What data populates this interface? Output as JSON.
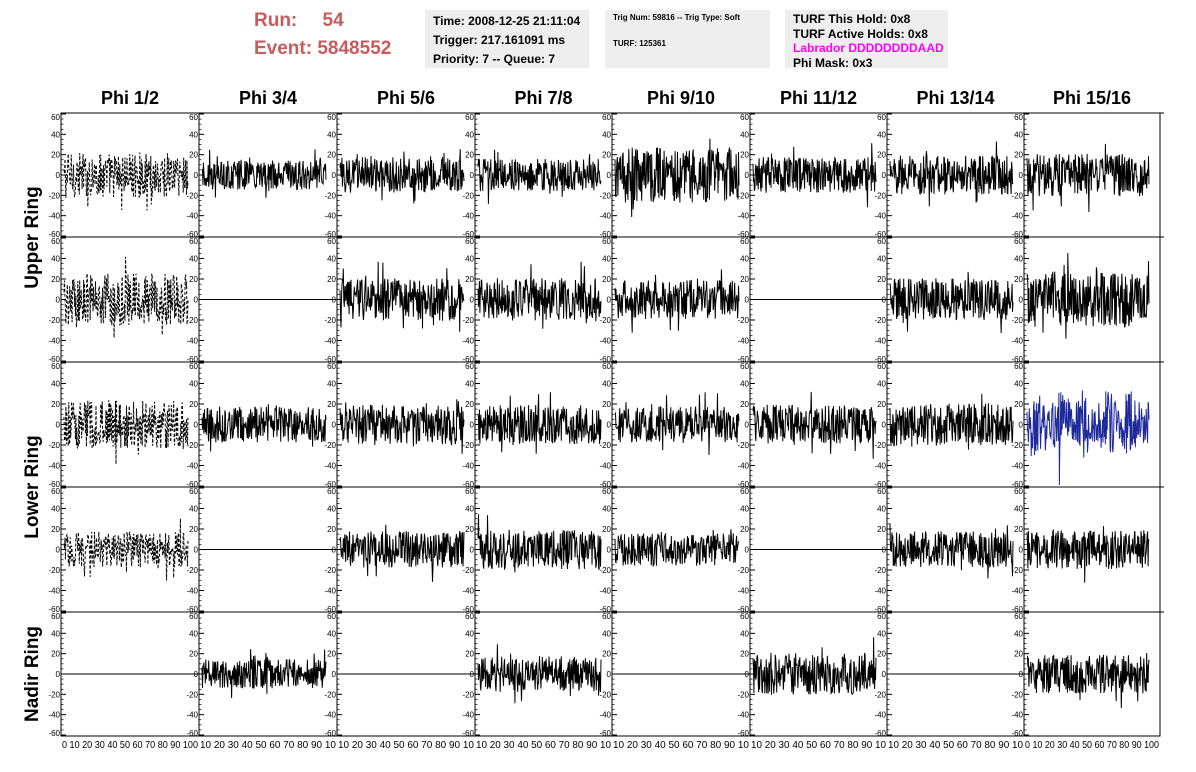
{
  "header": {
    "run_label": "Run:",
    "run_value": "54",
    "event_label": "Event:",
    "event_value": "5848552",
    "time": "Time: 2008-12-25 21:11:04",
    "trigger": "Trigger: 217.161091 ms",
    "priority": "Priority: 7 -- Queue: 7",
    "trig_num": "Trig Num: 59816 -- Trig Type: Soft",
    "turf": "TURF: 125361",
    "turf_this_hold": "TURF This Hold: 0x8",
    "turf_active_holds": "TURF Active Holds: 0x8",
    "labrador": "Labrador DDDDDDDDAAD",
    "phi_mask": "Phi Mask: 0x3"
  },
  "colors": {
    "run_text": "#c85b5b",
    "labrador_text": "#ff00ff",
    "highlight_trace": "#1f2a9a",
    "trace": "#000000",
    "info_box_bg": "#eeeeee"
  },
  "chart_data": {
    "type": "line",
    "columns": [
      "Phi 1/2",
      "Phi 3/4",
      "Phi 5/6",
      "Phi 7/8",
      "Phi 9/10",
      "Phi 11/12",
      "Phi 13/14",
      "Phi 15/16"
    ],
    "rows": [
      "Upper Ring",
      "Lower Ring",
      "Nadir Ring"
    ],
    "panel_rows": 5,
    "ylim": [
      -60,
      60
    ],
    "yticks": [
      -60,
      -40,
      -20,
      0,
      20,
      40,
      60
    ],
    "xlim": [
      0,
      100
    ],
    "xticks": [
      0,
      10,
      20,
      30,
      40,
      50,
      60,
      70,
      80,
      90,
      100
    ],
    "xtick_labels_edge": "0 10 20 30 40 50 60 70 80 90 100",
    "xtick_labels_inner": "10 20 30 40 50 60 70 80 90 10",
    "panels": [
      [
        {
          "style": "dashed",
          "amp": 14
        },
        {
          "style": "solid",
          "amp": 9
        },
        {
          "style": "solid",
          "amp": 11
        },
        {
          "style": "solid",
          "amp": 10
        },
        {
          "style": "solid",
          "amp": 17
        },
        {
          "style": "solid",
          "amp": 11
        },
        {
          "style": "solid",
          "amp": 12
        },
        {
          "style": "solid",
          "amp": 13
        }
      ],
      [
        {
          "style": "dashed",
          "amp": 16
        },
        {
          "style": "flat",
          "amp": 0
        },
        {
          "style": "solid",
          "amp": 13
        },
        {
          "style": "solid",
          "amp": 13
        },
        {
          "style": "solid",
          "amp": 12
        },
        {
          "style": "flat",
          "amp": 0
        },
        {
          "style": "solid",
          "amp": 13
        },
        {
          "style": "solid",
          "amp": 17
        }
      ],
      [
        {
          "style": "dashed",
          "amp": 15
        },
        {
          "style": "solid",
          "amp": 11
        },
        {
          "style": "solid",
          "amp": 12
        },
        {
          "style": "solid",
          "amp": 12
        },
        {
          "style": "solid",
          "amp": 11
        },
        {
          "style": "solid",
          "amp": 12
        },
        {
          "style": "solid",
          "amp": 13
        },
        {
          "style": "highlight",
          "amp": 18
        }
      ],
      [
        {
          "style": "dashed",
          "amp": 11
        },
        {
          "style": "flat",
          "amp": 0
        },
        {
          "style": "solid",
          "amp": 11
        },
        {
          "style": "solid",
          "amp": 12
        },
        {
          "style": "solid",
          "amp": 10
        },
        {
          "style": "flat",
          "amp": 0
        },
        {
          "style": "solid",
          "amp": 11
        },
        {
          "style": "solid",
          "amp": 12
        }
      ],
      [
        {
          "style": "flat",
          "amp": 0
        },
        {
          "style": "solid",
          "amp": 9
        },
        {
          "style": "flat",
          "amp": 0
        },
        {
          "style": "solid",
          "amp": 11
        },
        {
          "style": "flat",
          "amp": 0
        },
        {
          "style": "solid",
          "amp": 13
        },
        {
          "style": "flat",
          "amp": 0
        },
        {
          "style": "solid",
          "amp": 12
        }
      ]
    ]
  }
}
